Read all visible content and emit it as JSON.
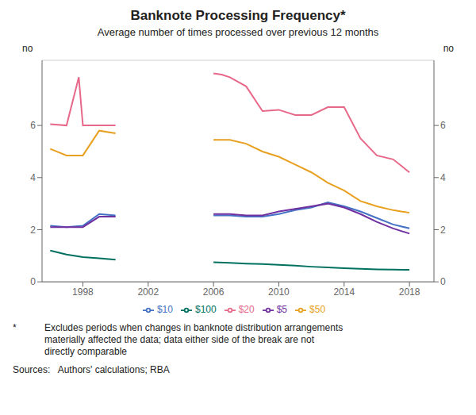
{
  "chart_data": {
    "type": "line",
    "title": "Banknote Processing Frequency*",
    "subtitle": "Average number of times processed over previous 12 months",
    "y_label": "no",
    "y2_label": "no",
    "xlim": [
      1995.5,
      2019.5
    ],
    "xticks": [
      1998,
      2002,
      2006,
      2010,
      2014,
      2018
    ],
    "ylim": [
      0,
      8.5
    ],
    "yticks": [
      0,
      2,
      4,
      6
    ],
    "y2lim": [
      0,
      8.5
    ],
    "y2ticks": [
      0,
      2,
      4,
      6
    ],
    "grid": true,
    "legend": "bottom",
    "footnote_star": "*",
    "footnote": "Excludes periods when changes in banknote distribution arrangements\nmaterially affected the data; data either side of the break are not\ndirectly comparable",
    "sources": "Sources:   Authors' calculations; RBA",
    "series": [
      {
        "name": "$20",
        "color": "#e8688a",
        "segments": [
          {
            "x": [
              1996.0,
              1997.0,
              1997.75,
              1998.0,
              1999.0,
              2000.0
            ],
            "values": [
              6.05,
              6.0,
              7.85,
              6.0,
              6.0,
              6.0
            ]
          },
          {
            "x": [
              2006,
              2006.5,
              2007,
              2008,
              2009,
              2010,
              2011,
              2012,
              2013,
              2014,
              2015,
              2016,
              2017,
              2018
            ],
            "values": [
              8.0,
              7.95,
              7.85,
              7.5,
              6.55,
              6.6,
              6.4,
              6.4,
              6.7,
              6.7,
              5.5,
              4.85,
              4.7,
              4.2
            ]
          }
        ]
      },
      {
        "name": "$50",
        "color": "#e8a020",
        "segments": [
          {
            "x": [
              1996,
              1997,
              1998,
              1999,
              2000
            ],
            "values": [
              5.1,
              4.85,
              4.85,
              5.8,
              5.7
            ]
          },
          {
            "x": [
              2006,
              2007,
              2008,
              2009,
              2010,
              2011,
              2012,
              2013,
              2014,
              2015,
              2016,
              2017,
              2018
            ],
            "values": [
              5.45,
              5.45,
              5.3,
              5.0,
              4.8,
              4.5,
              4.2,
              3.8,
              3.5,
              3.1,
              2.9,
              2.75,
              2.65
            ]
          }
        ]
      },
      {
        "name": "$10",
        "color": "#4472c4",
        "segments": [
          {
            "x": [
              1996,
              1997,
              1998,
              1999,
              2000
            ],
            "values": [
              2.15,
              2.1,
              2.15,
              2.6,
              2.55
            ]
          },
          {
            "x": [
              2006,
              2007,
              2008,
              2009,
              2010,
              2011,
              2012,
              2013,
              2014,
              2015,
              2016,
              2017,
              2018
            ],
            "values": [
              2.55,
              2.55,
              2.5,
              2.5,
              2.6,
              2.75,
              2.85,
              3.05,
              2.9,
              2.7,
              2.45,
              2.2,
              2.05
            ]
          }
        ]
      },
      {
        "name": "$5",
        "color": "#7030a0",
        "segments": [
          {
            "x": [
              1996,
              1997,
              1998,
              1999,
              2000
            ],
            "values": [
              2.1,
              2.1,
              2.1,
              2.5,
              2.5
            ]
          },
          {
            "x": [
              2006,
              2007,
              2008,
              2009,
              2010,
              2011,
              2012,
              2013,
              2014,
              2015,
              2016,
              2017,
              2018
            ],
            "values": [
              2.6,
              2.6,
              2.55,
              2.55,
              2.7,
              2.8,
              2.9,
              3.0,
              2.85,
              2.6,
              2.3,
              2.05,
              1.85
            ]
          }
        ]
      },
      {
        "name": "$100",
        "color": "#007060",
        "segments": [
          {
            "x": [
              1996,
              1997,
              1998,
              1999,
              2000
            ],
            "values": [
              1.2,
              1.05,
              0.95,
              0.9,
              0.85
            ]
          },
          {
            "x": [
              2006,
              2007,
              2008,
              2009,
              2010,
              2011,
              2012,
              2013,
              2014,
              2015,
              2016,
              2017,
              2018
            ],
            "values": [
              0.75,
              0.73,
              0.7,
              0.68,
              0.65,
              0.62,
              0.58,
              0.55,
              0.52,
              0.5,
              0.48,
              0.47,
              0.46
            ]
          }
        ]
      }
    ]
  }
}
